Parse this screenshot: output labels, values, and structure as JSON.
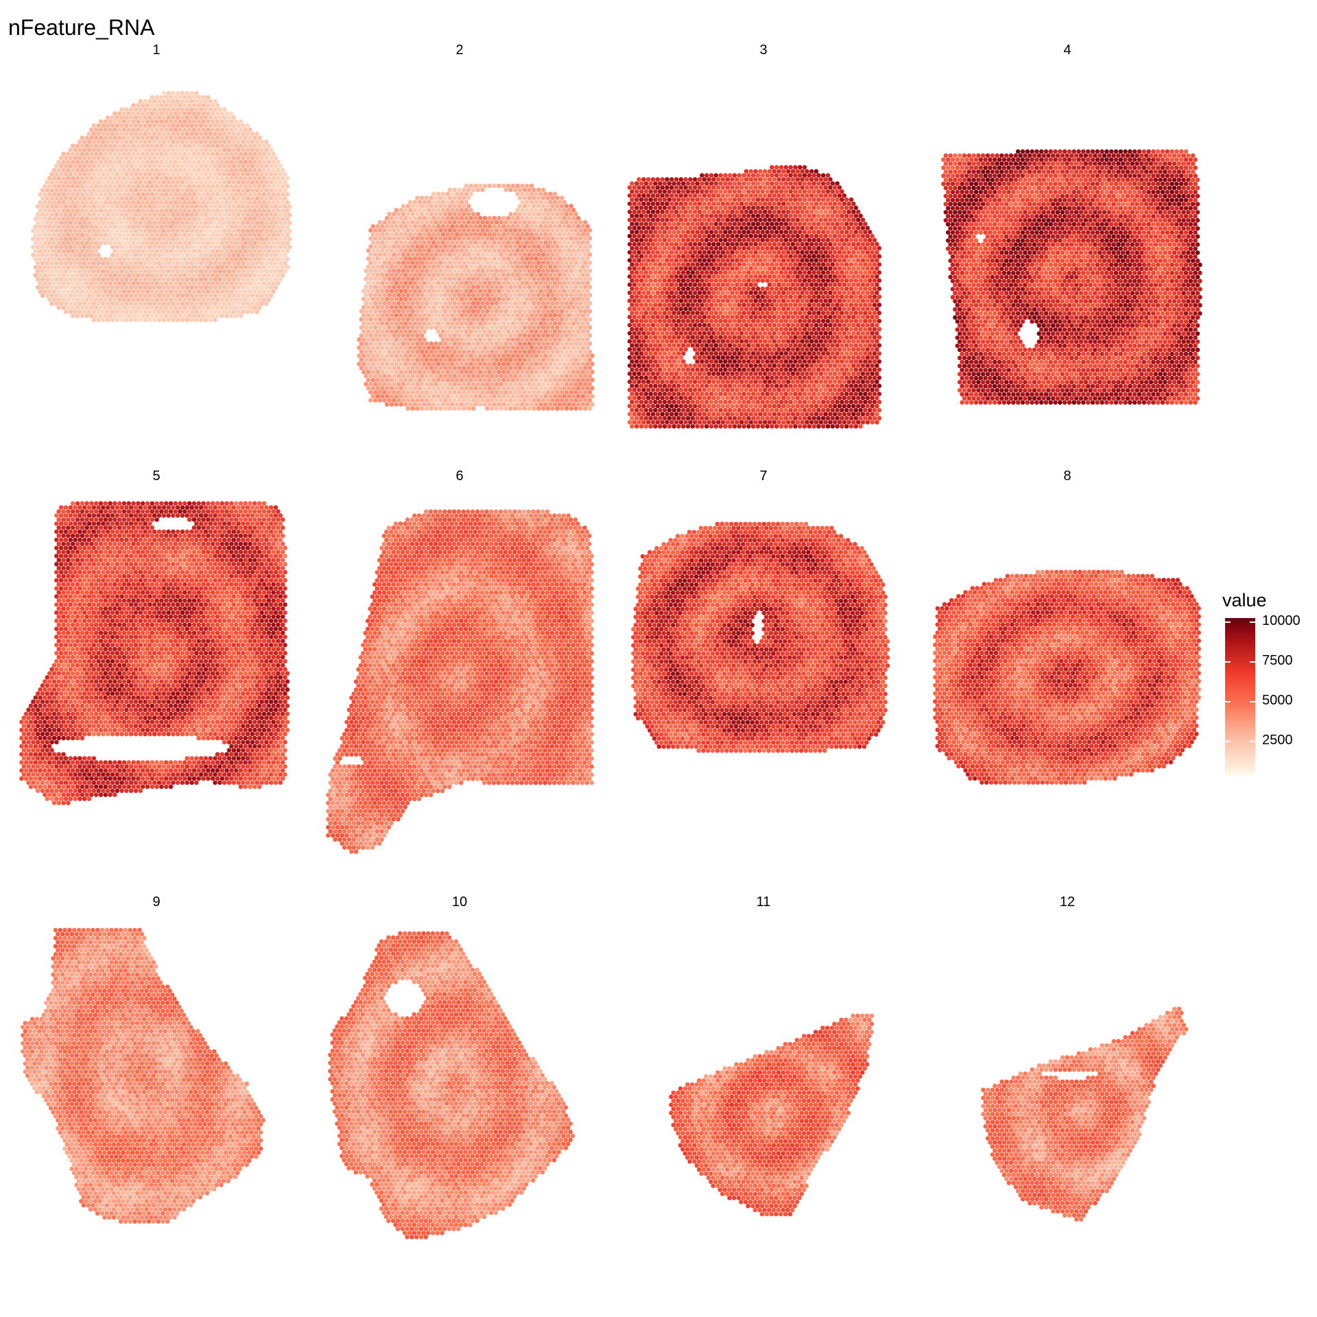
{
  "title": "nFeature_RNA",
  "chart_data": {
    "type": "heatmap",
    "title": "nFeature_RNA",
    "facets": [
      "1",
      "2",
      "3",
      "4",
      "5",
      "6",
      "7",
      "8",
      "9",
      "10",
      "11",
      "12"
    ],
    "legend": {
      "title": "value",
      "ticks": [
        2500,
        5000,
        7500,
        10000
      ],
      "range": [
        0,
        10500
      ],
      "placement": "right",
      "palette": [
        "#fff7e6",
        "#fcbba1",
        "#fb6a4a",
        "#ef3b2c",
        "#a50f15",
        "#67000d"
      ]
    },
    "panel_levels": [
      {
        "panel": "1",
        "approx_mean": 1800
      },
      {
        "panel": "2",
        "approx_mean": 2600
      },
      {
        "panel": "3",
        "approx_mean": 6800
      },
      {
        "panel": "4",
        "approx_mean": 7000
      },
      {
        "panel": "5",
        "approx_mean": 6200
      },
      {
        "panel": "6",
        "approx_mean": 4300
      },
      {
        "panel": "7",
        "approx_mean": 6300
      },
      {
        "panel": "8",
        "approx_mean": 5600
      },
      {
        "panel": "9",
        "approx_mean": 3600
      },
      {
        "panel": "10",
        "approx_mean": 3700
      },
      {
        "panel": "11",
        "approx_mean": 4500
      },
      {
        "panel": "12",
        "approx_mean": 3800
      }
    ]
  }
}
